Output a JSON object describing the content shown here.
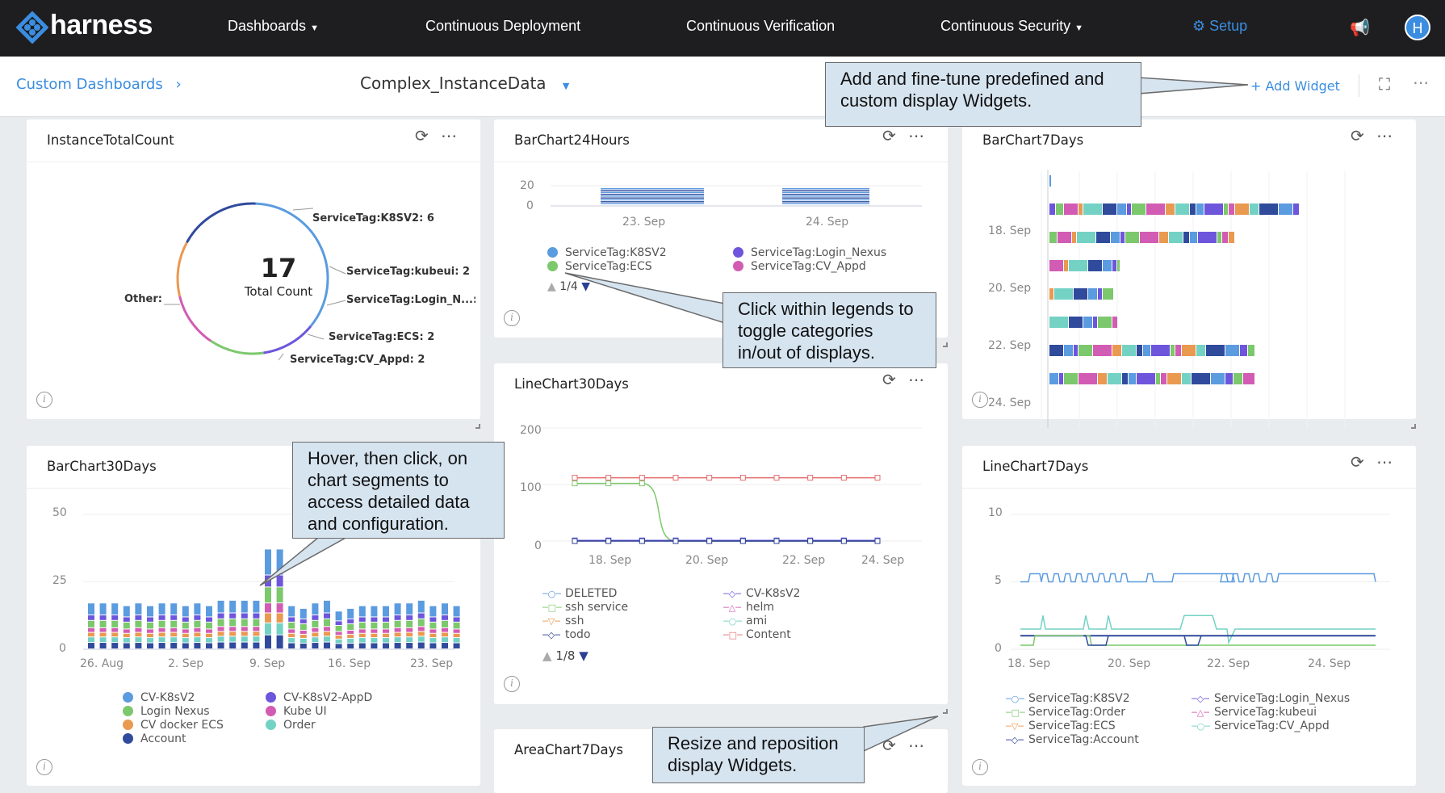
{
  "nav": {
    "logo": "harness",
    "items": [
      "Dashboards",
      "Continuous Deployment",
      "Continuous Verification",
      "Continuous Security"
    ],
    "setup": "Setup",
    "avatar": "H"
  },
  "subbar": {
    "breadcrumb": "Custom Dashboards",
    "dashboard": "Complex_InstanceData",
    "add_widget": "+ Add Widget"
  },
  "callouts": {
    "add": "Add and fine-tune predefined and custom display Widgets.",
    "legend": "Click within legends to toggle categories in/out of displays.",
    "hover": "Hover, then click, on chart segments to access detailed data and configuration.",
    "resize": "Resize and reposition display Widgets."
  },
  "widgets": {
    "instance": {
      "title": "InstanceTotalCount",
      "count": "17",
      "count_label": "Total Count"
    },
    "bar24": {
      "title": "BarChart24Hours",
      "pager": "1/4"
    },
    "bar7": {
      "title": "BarChart7Days"
    },
    "bar30": {
      "title": "BarChart30Days"
    },
    "line30": {
      "title": "LineChart30Days",
      "pager": "1/8"
    },
    "line7": {
      "title": "LineChart7Days"
    },
    "area7": {
      "title": "AreaChart7Days"
    }
  },
  "colors": {
    "k8s": "#5b9bdf",
    "nexus": "#7cc86c",
    "appd": "#ea9951",
    "account": "#304a9c",
    "kubeui": "#d25cb3",
    "order": "#73d2c4",
    "appdv2": "#6d56dc",
    "red": "#e36d6d",
    "accent": "#3b8de0",
    "dark": "#2b3f94"
  },
  "chart_data": [
    {
      "id": "instance",
      "type": "pie",
      "title": "InstanceTotalCount",
      "slices": [
        {
          "label": "ServiceTag:K8SV2",
          "value": 6
        },
        {
          "label": "ServiceTag:kubeui",
          "value": 2
        },
        {
          "label": "ServiceTag:Login_N...",
          "value": 2
        },
        {
          "label": "ServiceTag:ECS",
          "value": 2
        },
        {
          "label": "ServiceTag:CV_Appd",
          "value": 2
        },
        {
          "label": "Other",
          "value": 3
        }
      ],
      "labels": [
        "ServiceTag:K8SV2: 6",
        "ServiceTag:kubeui: 2",
        "ServiceTag:Login_N...: 2",
        "ServiceTag:ECS: 2",
        "ServiceTag:CV_Appd: 2",
        "Other:"
      ]
    },
    {
      "id": "bar24",
      "type": "bar",
      "title": "BarChart24Hours",
      "x": [
        "23. Sep",
        "24. Sep"
      ],
      "yticks": [
        "20",
        "0"
      ],
      "ylim": [
        0,
        20
      ],
      "legend": [
        "ServiceTag:K8SV2",
        "ServiceTag:Login_Nexus",
        "ServiceTag:ECS",
        "ServiceTag:CV_Appd"
      ]
    },
    {
      "id": "bar7",
      "type": "bar",
      "title": "BarChart7Days",
      "categories": [
        "18. Sep",
        "20. Sep",
        "22. Sep",
        "24. Sep"
      ]
    },
    {
      "id": "bar30",
      "type": "bar",
      "title": "BarChart30Days",
      "xticks": [
        "26. Aug",
        "2. Sep",
        "9. Sep",
        "16. Sep",
        "23. Sep"
      ],
      "yticks": [
        "50",
        "25",
        "0"
      ],
      "ylim": [
        0,
        50
      ],
      "totals": [
        17,
        17,
        17,
        16,
        17,
        16,
        17,
        17,
        16,
        17,
        16,
        18,
        18,
        18,
        18,
        37,
        37,
        16,
        15,
        17,
        18,
        14,
        15,
        16,
        16,
        16,
        17,
        17,
        18,
        16,
        17,
        16
      ],
      "legend": [
        "CV-K8sV2",
        "CV-K8sV2-AppD",
        "Login Nexus",
        "Kube UI",
        "CV docker ECS",
        "Order",
        "Account"
      ]
    },
    {
      "id": "line30",
      "type": "line",
      "title": "LineChart30Days",
      "xticks": [
        "18. Sep",
        "20. Sep",
        "22. Sep",
        "24. Sep"
      ],
      "yticks": [
        "200",
        "100",
        "0"
      ],
      "ylim": [
        0,
        200
      ],
      "series": [
        {
          "name": "Content",
          "values": [
            112,
            112,
            112,
            112,
            112,
            112,
            112,
            112,
            112,
            112
          ]
        },
        {
          "name": "ssh service",
          "values": [
            102,
            102,
            102,
            0,
            0,
            0,
            0,
            0,
            0,
            0
          ]
        },
        {
          "name": "DELETED",
          "values": [
            1,
            1,
            1,
            1,
            1,
            1,
            1,
            1,
            1,
            1
          ]
        },
        {
          "name": "CV-K8sV2",
          "values": [
            1,
            1,
            1,
            1,
            1,
            1,
            1,
            1,
            1,
            1
          ]
        },
        {
          "name": "todo",
          "values": [
            0,
            0,
            0,
            0,
            0,
            0,
            0,
            0,
            0,
            0
          ]
        }
      ],
      "legend": [
        "DELETED",
        "CV-K8sV2",
        "ssh service",
        "helm",
        "ssh",
        "ami",
        "todo",
        "Content"
      ]
    },
    {
      "id": "line7",
      "type": "line",
      "title": "LineChart7Days",
      "xticks": [
        "18. Sep",
        "20. Sep",
        "22. Sep",
        "24. Sep"
      ],
      "yticks": [
        "10",
        "5",
        "0"
      ],
      "ylim": [
        0,
        10
      ],
      "legend": [
        "ServiceTag:K8SV2",
        "ServiceTag:Login_Nexus",
        "ServiceTag:Order",
        "ServiceTag:kubeui",
        "ServiceTag:ECS",
        "ServiceTag:CV_Appd",
        "ServiceTag:Account"
      ]
    }
  ]
}
